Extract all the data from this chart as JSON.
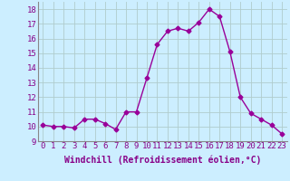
{
  "x": [
    0,
    1,
    2,
    3,
    4,
    5,
    6,
    7,
    8,
    9,
    10,
    11,
    12,
    13,
    14,
    15,
    16,
    17,
    18,
    19,
    20,
    21,
    22,
    23
  ],
  "y": [
    10.1,
    10.0,
    10.0,
    9.9,
    10.5,
    10.5,
    10.2,
    9.8,
    11.0,
    11.0,
    13.3,
    15.6,
    16.5,
    16.7,
    16.5,
    17.1,
    18.0,
    17.5,
    15.1,
    12.0,
    10.9,
    10.5,
    10.1,
    9.5
  ],
  "line_color": "#990099",
  "marker": "D",
  "marker_size": 2.5,
  "bg_color": "#cceeff",
  "grid_color": "#aaddcc",
  "xlabel": "Windchill (Refroidissement éolien,°C)",
  "xlabel_fontsize": 7,
  "tick_fontsize": 6.5,
  "ylim": [
    9,
    18.5
  ],
  "yticks": [
    9,
    10,
    11,
    12,
    13,
    14,
    15,
    16,
    17,
    18
  ],
  "xticks": [
    0,
    1,
    2,
    3,
    4,
    5,
    6,
    7,
    8,
    9,
    10,
    11,
    12,
    13,
    14,
    15,
    16,
    17,
    18,
    19,
    20,
    21,
    22,
    23
  ],
  "xtick_labels": [
    "0",
    "1",
    "2",
    "3",
    "4",
    "5",
    "6",
    "7",
    "8",
    "9",
    "10",
    "11",
    "12",
    "13",
    "14",
    "15",
    "16",
    "17",
    "18",
    "19",
    "20",
    "21",
    "22",
    "23"
  ]
}
